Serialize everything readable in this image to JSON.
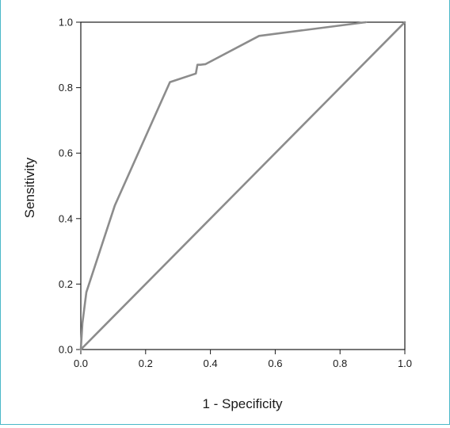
{
  "chart_data": {
    "type": "line",
    "title": "",
    "xlabel": "1 - Specificity",
    "ylabel": "Sensitivity",
    "xlim": [
      0.0,
      1.0
    ],
    "ylim": [
      0.0,
      1.0
    ],
    "x_ticks": [
      "0.0",
      "0.2",
      "0.4",
      "0.6",
      "0.8",
      "1.0"
    ],
    "y_ticks": [
      "0.0",
      "0.2",
      "0.4",
      "0.6",
      "0.8",
      "1.0"
    ],
    "grid": false,
    "legend": "none",
    "line_color": "#8c8c8c",
    "series": [
      {
        "x": [
          0.0,
          0.005,
          0.017,
          0.105,
          0.275,
          0.355,
          0.36,
          0.37,
          0.385,
          0.55,
          0.88
        ],
        "y": [
          0.0,
          0.08,
          0.175,
          0.44,
          0.817,
          0.843,
          0.87,
          0.87,
          0.872,
          0.958,
          1.0
        ]
      },
      {
        "x": [
          0.0,
          1.0
        ],
        "y": [
          0.0,
          1.0
        ]
      }
    ]
  }
}
